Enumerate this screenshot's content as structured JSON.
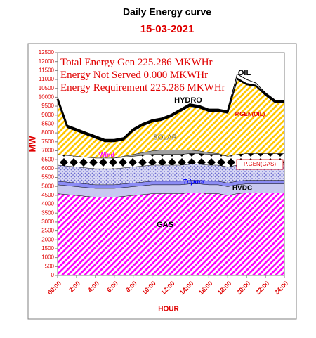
{
  "chart_data": {
    "type": "stacked-area",
    "title": "Daily Energy curve",
    "subtitle": "15-03-2021",
    "y_label": "MW",
    "x_label": "HOUR",
    "annotations": [
      "Total Energy Gen 225.286 MKWHr",
      "Energy Not Served  0.000 MKWHr",
      "Energy Requirement       225.286 MKWHr"
    ],
    "categories": [
      "00:00",
      null,
      "2:00",
      null,
      "4:00",
      null,
      "6:00",
      null,
      "8:00",
      null,
      "10:00",
      null,
      "12:00",
      null,
      "14:00",
      null,
      "16:00",
      null,
      "18:00",
      null,
      "20:00",
      null,
      "22:00",
      null,
      "24:00"
    ],
    "series": [
      {
        "name": "GAS",
        "color": "#ff00ff",
        "values": [
          4600,
          4550,
          4500,
          4450,
          4400,
          4400,
          4400,
          4450,
          4500,
          4550,
          4600,
          4600,
          4600,
          4600,
          4650,
          4650,
          4600,
          4600,
          4500,
          4600,
          4650,
          4650,
          4650,
          4650,
          4650
        ]
      },
      {
        "name": "HVDC",
        "color": "#c8c8f0",
        "values": [
          500,
          500,
          500,
          500,
          500,
          500,
          500,
          500,
          500,
          500,
          500,
          500,
          500,
          500,
          500,
          500,
          500,
          500,
          500,
          500,
          500,
          500,
          500,
          500,
          500
        ]
      },
      {
        "name": "Tripura",
        "color": "#8c8cf5",
        "values": [
          200,
          200,
          200,
          200,
          200,
          200,
          200,
          200,
          200,
          200,
          200,
          200,
          200,
          200,
          200,
          200,
          200,
          200,
          200,
          200,
          200,
          200,
          200,
          200,
          200
        ]
      },
      {
        "name": "P.GEN(GAS)",
        "color": "#6a6ad0",
        "values": [
          900,
          900,
          900,
          900,
          900,
          900,
          900,
          900,
          900,
          900,
          900,
          900,
          900,
          900,
          900,
          900,
          900,
          900,
          900,
          900,
          900,
          900,
          900,
          900,
          900
        ]
      },
      {
        "name": "Wind",
        "color": "#000000",
        "values": [
          600,
          600,
          600,
          600,
          600,
          600,
          600,
          600,
          600,
          600,
          600,
          600,
          600,
          600,
          600,
          600,
          600,
          600,
          600,
          600,
          600,
          600,
          600,
          600,
          600
        ]
      },
      {
        "name": "SOLAR",
        "color": "#a0a0a0",
        "values": [
          0,
          0,
          0,
          0,
          0,
          0,
          0,
          50,
          100,
          150,
          200,
          250,
          250,
          250,
          200,
          150,
          100,
          50,
          0,
          0,
          0,
          0,
          0,
          0,
          0
        ]
      },
      {
        "name": "P.GEN(OIL)",
        "color": "#ffc800",
        "values": [
          3000,
          1550,
          1400,
          1250,
          1100,
          900,
          900,
          900,
          1300,
          1500,
          1600,
          1650,
          1850,
          2150,
          2450,
          2400,
          2300,
          2350,
          2400,
          4200,
          3850,
          3750,
          3250,
          2850,
          2850
        ]
      },
      {
        "name": "HYDRO",
        "color": "#000000",
        "values": [
          100,
          100,
          100,
          100,
          100,
          100,
          100,
          100,
          100,
          100,
          100,
          100,
          100,
          100,
          100,
          100,
          100,
          100,
          100,
          100,
          100,
          100,
          100,
          100,
          100
        ]
      },
      {
        "name": "OIL",
        "color": "#ffffff",
        "values": [
          0,
          0,
          0,
          0,
          0,
          0,
          0,
          0,
          0,
          0,
          0,
          0,
          0,
          0,
          0,
          0,
          0,
          0,
          0,
          200,
          200,
          100,
          0,
          0,
          0
        ]
      }
    ],
    "ylim": [
      0,
      12500
    ],
    "yticks": [
      0,
      500,
      1000,
      1500,
      2000,
      2500,
      3000,
      3500,
      4000,
      4500,
      5000,
      5500,
      6000,
      6500,
      7000,
      7500,
      8000,
      8500,
      9000,
      9500,
      10000,
      10500,
      11000,
      11500,
      12000,
      12500
    ],
    "grid": false
  }
}
